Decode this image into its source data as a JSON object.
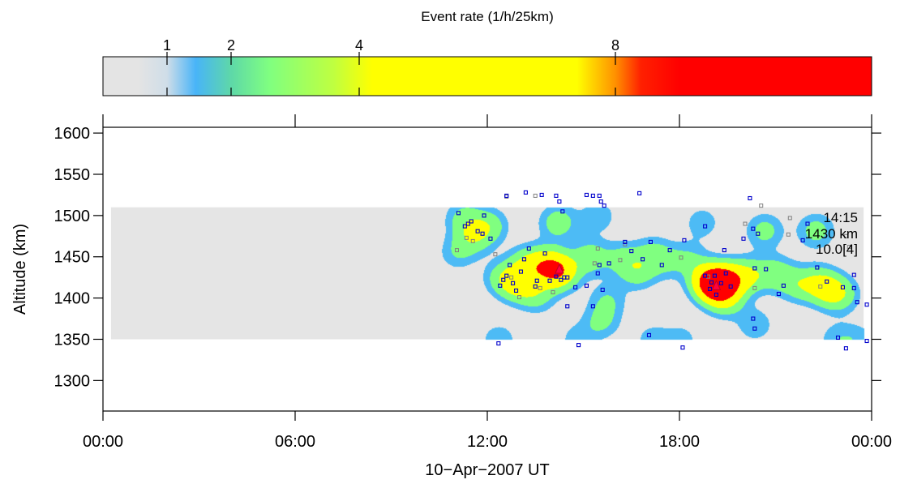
{
  "chart_data": {
    "type": "heatmap",
    "colorbar": {
      "title": "Event rate (1/h/25km)",
      "ticks": [
        {
          "value": 1,
          "label": "1"
        },
        {
          "value": 2,
          "label": "2"
        },
        {
          "value": 4,
          "label": "4"
        },
        {
          "value": 8,
          "label": "8"
        }
      ],
      "stops": [
        {
          "value": 0,
          "color": "#e4e4e4"
        },
        {
          "value": 0.55,
          "color": "#e4e4e4"
        },
        {
          "value": 1.0,
          "color": "#cfdde8"
        },
        {
          "value": 1.45,
          "color": "#48b4f8"
        },
        {
          "value": 2.0,
          "color": "#5ed8a8"
        },
        {
          "value": 2.6,
          "color": "#80ff80"
        },
        {
          "value": 3.6,
          "color": "#bfff40"
        },
        {
          "value": 4.2,
          "color": "#ffff00"
        },
        {
          "value": 7.4,
          "color": "#ffff00"
        },
        {
          "value": 8.0,
          "color": "#ff9000"
        },
        {
          "value": 8.4,
          "color": "#ff2000"
        },
        {
          "value": 9.0,
          "color": "#ff0000"
        },
        {
          "value": 12,
          "color": "#ff0000"
        }
      ],
      "range": [
        0,
        12
      ]
    },
    "xaxis": {
      "label": "10−Apr−2007 UT",
      "range_hours": [
        0,
        24
      ],
      "ticks": [
        {
          "value": 0,
          "label": "00:00"
        },
        {
          "value": 6,
          "label": "06:00"
        },
        {
          "value": 12,
          "label": "12:00"
        },
        {
          "value": 18,
          "label": "18:00"
        },
        {
          "value": 24,
          "label": "00:00"
        }
      ]
    },
    "yaxis": {
      "label": "Altitude (km)",
      "range": [
        1263,
        1607
      ],
      "ticks": [
        1300,
        1350,
        1400,
        1450,
        1500,
        1550,
        1600
      ]
    },
    "coverage": {
      "t_start": 0.25,
      "t_end": 23.75,
      "alt_min": 1350,
      "alt_max": 1510,
      "color": "#e5e5e5"
    },
    "contour_levels": [
      1,
      2,
      4,
      8
    ],
    "contour_colors": [
      "#4dbbf5",
      "#80ff80",
      "#ffff00",
      "#ff0000"
    ],
    "hotspots": [
      {
        "t": 11.25,
        "alt": 1498,
        "amp": 2.3
      },
      {
        "t": 11.55,
        "alt": 1475,
        "amp": 3.0
      },
      {
        "t": 12.05,
        "alt": 1488,
        "amp": 2.8
      },
      {
        "t": 11.05,
        "alt": 1455,
        "amp": 1.8
      },
      {
        "t": 12.45,
        "alt": 1425,
        "amp": 2.4
      },
      {
        "t": 12.95,
        "alt": 1418,
        "amp": 4.7
      },
      {
        "t": 13.25,
        "alt": 1442,
        "amp": 3.3
      },
      {
        "t": 13.85,
        "alt": 1440,
        "amp": 4.8
      },
      {
        "t": 13.55,
        "alt": 1403,
        "amp": 2.4
      },
      {
        "t": 14.25,
        "alt": 1432,
        "amp": 6.2
      },
      {
        "t": 14.2,
        "alt": 1492,
        "amp": 3.0
      },
      {
        "t": 15.2,
        "alt": 1450,
        "amp": 3.0
      },
      {
        "t": 15.75,
        "alt": 1398,
        "amp": 1.9
      },
      {
        "t": 15.45,
        "alt": 1500,
        "amp": 1.7
      },
      {
        "t": 16.2,
        "alt": 1448,
        "amp": 2.3
      },
      {
        "t": 16.7,
        "alt": 1432,
        "amp": 2.7
      },
      {
        "t": 17.15,
        "alt": 1455,
        "amp": 2.1
      },
      {
        "t": 17.6,
        "alt": 1444,
        "amp": 1.6
      },
      {
        "t": 18.3,
        "alt": 1448,
        "amp": 1.8
      },
      {
        "t": 18.85,
        "alt": 1422,
        "amp": 4.2
      },
      {
        "t": 19.15,
        "alt": 1416,
        "amp": 9.8
      },
      {
        "t": 19.55,
        "alt": 1422,
        "amp": 4.6
      },
      {
        "t": 19.45,
        "alt": 1397,
        "amp": 2.6
      },
      {
        "t": 20.15,
        "alt": 1428,
        "amp": 3.3
      },
      {
        "t": 21.0,
        "alt": 1430,
        "amp": 2.9
      },
      {
        "t": 21.7,
        "alt": 1416,
        "amp": 2.6
      },
      {
        "t": 22.3,
        "alt": 1420,
        "amp": 2.4
      },
      {
        "t": 22.65,
        "alt": 1410,
        "amp": 3.6
      },
      {
        "t": 23.05,
        "alt": 1404,
        "amp": 2.4
      },
      {
        "t": 20.65,
        "alt": 1482,
        "amp": 2.6
      },
      {
        "t": 22.25,
        "alt": 1482,
        "amp": 2.7
      },
      {
        "t": 18.7,
        "alt": 1492,
        "amp": 1.6
      },
      {
        "t": 20.35,
        "alt": 1368,
        "amp": 1.8
      },
      {
        "t": 15.55,
        "alt": 1372,
        "amp": 2.2
      },
      {
        "t": 12.35,
        "alt": 1350,
        "amp": 1.7
      },
      {
        "t": 14.8,
        "alt": 1350,
        "amp": 1.5
      },
      {
        "t": 17.15,
        "alt": 1350,
        "amp": 1.5
      },
      {
        "t": 18.05,
        "alt": 1350,
        "amp": 1.4
      },
      {
        "t": 22.9,
        "alt": 1350,
        "amp": 1.6
      },
      {
        "t": 23.6,
        "alt": 1350,
        "amp": 1.4
      }
    ],
    "events_blue": [
      [
        11.1,
        1503
      ],
      [
        11.3,
        1487
      ],
      [
        11.4,
        1490
      ],
      [
        11.5,
        1493
      ],
      [
        11.7,
        1481
      ],
      [
        11.85,
        1478
      ],
      [
        11.9,
        1500
      ],
      [
        12.1,
        1472
      ],
      [
        12.4,
        1415
      ],
      [
        12.5,
        1422
      ],
      [
        12.6,
        1427
      ],
      [
        12.7,
        1440
      ],
      [
        12.8,
        1418
      ],
      [
        12.9,
        1409
      ],
      [
        13.05,
        1432
      ],
      [
        13.15,
        1447
      ],
      [
        13.3,
        1460
      ],
      [
        13.5,
        1414
      ],
      [
        13.55,
        1421
      ],
      [
        13.8,
        1454
      ],
      [
        13.95,
        1421
      ],
      [
        14.15,
        1426
      ],
      [
        14.3,
        1422
      ],
      [
        14.4,
        1425
      ],
      [
        14.75,
        1413
      ],
      [
        12.6,
        1524
      ],
      [
        13.2,
        1528
      ],
      [
        13.7,
        1525
      ],
      [
        14.15,
        1524
      ],
      [
        14.25,
        1517
      ],
      [
        14.35,
        1505
      ],
      [
        14.5,
        1390
      ],
      [
        14.5,
        1425
      ],
      [
        15.1,
        1415
      ],
      [
        15.3,
        1390
      ],
      [
        15.45,
        1430
      ],
      [
        15.6,
        1410
      ],
      [
        15.1,
        1525
      ],
      [
        15.3,
        1524
      ],
      [
        15.5,
        1524
      ],
      [
        15.55,
        1517
      ],
      [
        15.65,
        1512
      ],
      [
        15.5,
        1440
      ],
      [
        15.8,
        1442
      ],
      [
        16.3,
        1468
      ],
      [
        16.5,
        1457
      ],
      [
        16.75,
        1527
      ],
      [
        16.85,
        1447
      ],
      [
        17.1,
        1468
      ],
      [
        17.45,
        1440
      ],
      [
        17.7,
        1458
      ],
      [
        18.15,
        1470
      ],
      [
        18.8,
        1427
      ],
      [
        18.95,
        1411
      ],
      [
        19.0,
        1419
      ],
      [
        19.1,
        1427
      ],
      [
        19.15,
        1404
      ],
      [
        19.3,
        1418
      ],
      [
        19.45,
        1430
      ],
      [
        19.6,
        1414
      ],
      [
        20.0,
        1472
      ],
      [
        20.3,
        1484
      ],
      [
        20.35,
        1436
      ],
      [
        20.45,
        1478
      ],
      [
        20.7,
        1435
      ],
      [
        21.1,
        1405
      ],
      [
        21.25,
        1415
      ],
      [
        21.85,
        1470
      ],
      [
        22.0,
        1490
      ],
      [
        22.3,
        1437
      ],
      [
        22.6,
        1420
      ],
      [
        23.1,
        1413
      ],
      [
        23.45,
        1412
      ],
      [
        23.45,
        1428
      ],
      [
        23.55,
        1395
      ],
      [
        12.35,
        1345
      ],
      [
        14.85,
        1343
      ],
      [
        17.05,
        1355
      ],
      [
        18.1,
        1340
      ],
      [
        20.3,
        1375
      ],
      [
        20.35,
        1363
      ],
      [
        22.95,
        1352
      ],
      [
        23.2,
        1339
      ],
      [
        23.85,
        1348
      ],
      [
        23.85,
        1392
      ],
      [
        19.4,
        1458
      ],
      [
        18.8,
        1487
      ],
      [
        20.2,
        1521
      ]
    ],
    "events_gray": [
      [
        11.05,
        1458
      ],
      [
        11.35,
        1473
      ],
      [
        11.55,
        1469
      ],
      [
        12.25,
        1453
      ],
      [
        12.75,
        1425
      ],
      [
        13.0,
        1401
      ],
      [
        13.65,
        1412
      ],
      [
        14.05,
        1407
      ],
      [
        12.6,
        1523
      ],
      [
        13.5,
        1524
      ],
      [
        15.35,
        1442
      ],
      [
        15.45,
        1460
      ],
      [
        16.15,
        1446
      ],
      [
        16.3,
        1465
      ],
      [
        18.05,
        1449
      ],
      [
        18.9,
        1426
      ],
      [
        20.05,
        1490
      ],
      [
        20.35,
        1412
      ],
      [
        21.45,
        1497
      ],
      [
        21.4,
        1477
      ],
      [
        22.4,
        1414
      ],
      [
        23.2,
        1475
      ],
      [
        23.3,
        1462
      ],
      [
        20.55,
        1512
      ]
    ],
    "events_red": [
      [
        14.25,
        1435
      ],
      [
        19.15,
        1415
      ]
    ],
    "annotation": [
      "14:15",
      "1430 km",
      "10.0[4]"
    ]
  }
}
